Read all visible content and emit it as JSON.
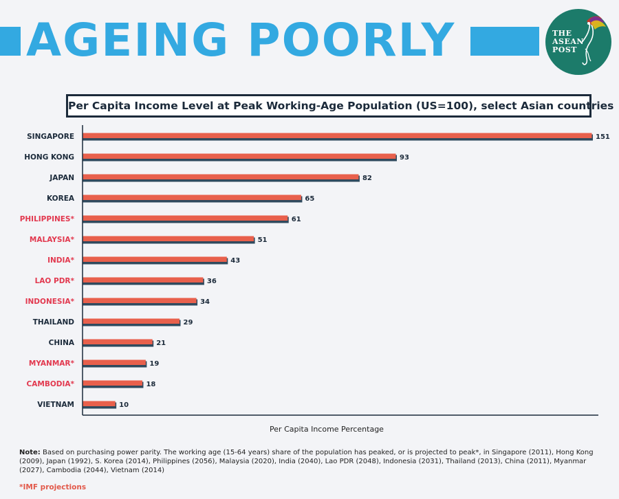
{
  "header": {
    "title": "AGEING POORLY",
    "logo_lines": [
      "THE",
      "ASEAN",
      "POST"
    ]
  },
  "colors": {
    "accent_blue": "#33a9e1",
    "bar_fill": "#e8604c",
    "bar_shadow": "#2f4a5e",
    "label_dark": "#1b2a3a",
    "label_red": "#e2394f",
    "logo_green": "#1c7b6a"
  },
  "chart_data": {
    "type": "bar",
    "orientation": "horizontal",
    "title": "Per Capita Income Level at Peak Working-Age Population (US=100), select Asian countries",
    "xlabel": "Per Capita Income Percentage",
    "ylabel": "",
    "xlim": [
      0,
      151
    ],
    "grid": false,
    "categories": [
      "SINGAPORE",
      "HONG KONG",
      "JAPAN",
      "KOREA",
      "PHILIPPINES*",
      "MALAYSIA*",
      "INDIA*",
      "LAO PDR*",
      "INDONESIA*",
      "THAILAND",
      "CHINA",
      "MYANMAR*",
      "CAMBODIA*",
      "VIETNAM"
    ],
    "values": [
      151,
      93,
      82,
      65,
      61,
      51,
      43,
      36,
      34,
      29,
      21,
      19,
      18,
      10
    ],
    "data_labels": [
      "151",
      "93",
      "82",
      "65",
      "61",
      "51",
      "43",
      "36",
      "34",
      "29",
      "21",
      "19",
      "18",
      "10"
    ],
    "projected": [
      false,
      false,
      false,
      false,
      true,
      true,
      true,
      true,
      true,
      false,
      false,
      true,
      true,
      false
    ]
  },
  "note": {
    "label": "Note:",
    "text": "Based on purchasing power parity. The working age (15-64 years) share of the population has peaked, or is projected to peak*, in Singapore (2011), Hong Kong (2009), Japan (1992), S. Korea (2014), Philippines (2056), Malaysia (2020), India (2040), Lao PDR (2048), Indonesia (2031), Thailand (2013), China (2011), Myanmar (2027), Cambodia (2044), Vietnam (2014)"
  },
  "footnote": "*IMF projections"
}
